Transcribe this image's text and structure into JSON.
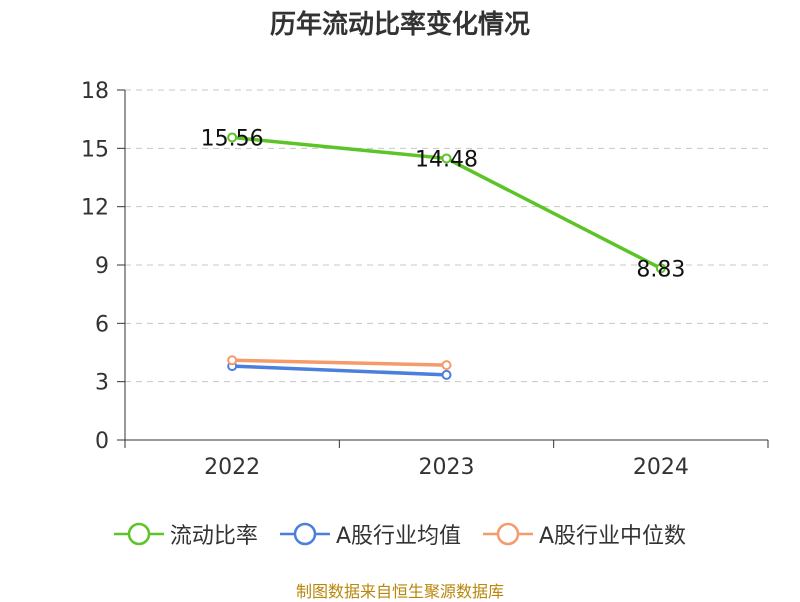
{
  "chart_data": {
    "type": "line",
    "title": "历年流动比率变化情况",
    "categories": [
      "2022",
      "2023",
      "2024"
    ],
    "series": [
      {
        "name": "流动比率",
        "values": [
          15.56,
          14.48,
          8.83
        ],
        "color": "#5cc426",
        "labels": [
          "15.56",
          "14.48",
          "8.83"
        ]
      },
      {
        "name": "A股行业均值",
        "values": [
          3.8,
          3.35,
          null
        ],
        "color": "#4a7fdc"
      },
      {
        "name": "A股行业中位数",
        "values": [
          4.1,
          3.85,
          null
        ],
        "color": "#f59a6a"
      }
    ],
    "yticks": [
      "0",
      "3",
      "6",
      "9",
      "12",
      "15",
      "18"
    ],
    "ylim": [
      0,
      18
    ],
    "grid": true,
    "legend_position": "bottom"
  },
  "footer": {
    "source": "制图数据来自恒生聚源数据库"
  }
}
